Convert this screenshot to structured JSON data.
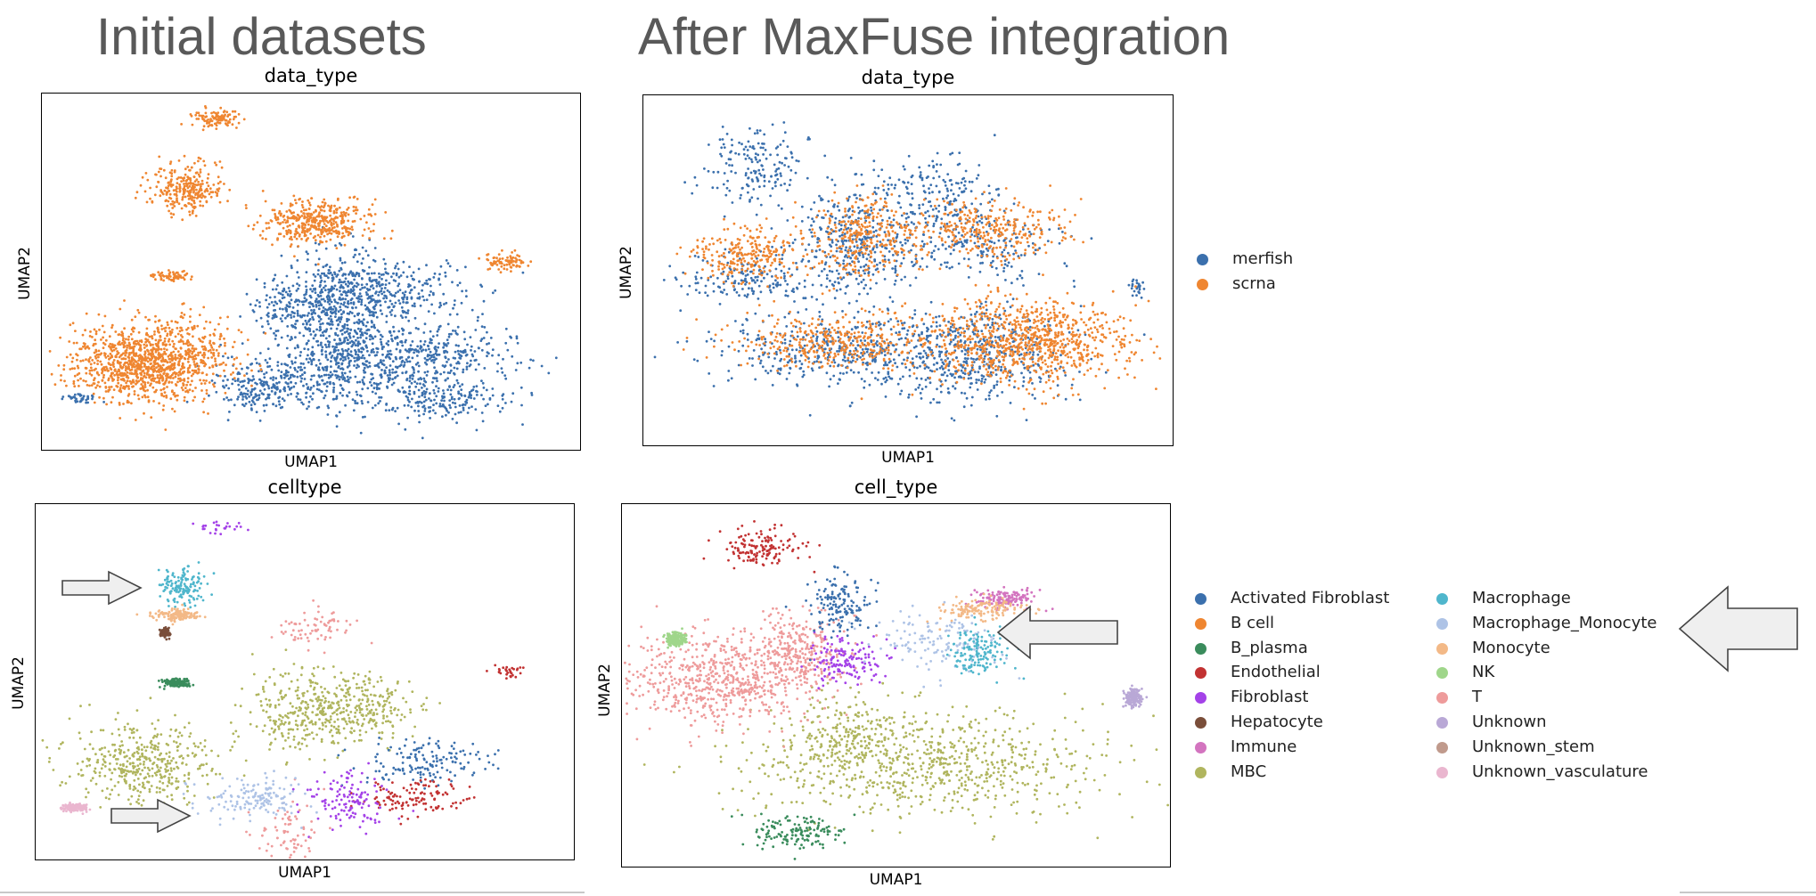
{
  "headings": {
    "left": "Initial datasets",
    "right": "After MaxFuse integration"
  },
  "axes": {
    "x": "UMAP1",
    "y": "UMAP2"
  },
  "panels": {
    "top_left": {
      "title": "data_type"
    },
    "top_right": {
      "title": "data_type"
    },
    "bottom_left": {
      "title": "celltype"
    },
    "bottom_right": {
      "title": "cell_type"
    }
  },
  "legend_data_type": [
    {
      "label": "merfish",
      "color": "#3b70ad"
    },
    {
      "label": "scrna",
      "color": "#ef8631"
    }
  ],
  "legend_cell_type": [
    {
      "label": "Activated Fibroblast",
      "color": "#3b70ad"
    },
    {
      "label": "B cell",
      "color": "#ef8631"
    },
    {
      "label": "B_plasma",
      "color": "#3a8c5c"
    },
    {
      "label": "Endothelial",
      "color": "#c23232"
    },
    {
      "label": "Fibroblast",
      "color": "#a442e8"
    },
    {
      "label": "Hepatocyte",
      "color": "#7a4e3a"
    },
    {
      "label": "Immune",
      "color": "#d374bf"
    },
    {
      "label": "MBC",
      "color": "#b0b55e"
    },
    {
      "label": "Macrophage",
      "color": "#4fb6cc"
    },
    {
      "label": "Macrophage_Monocyte",
      "color": "#aec3e6"
    },
    {
      "label": "Monocyte",
      "color": "#f3b987"
    },
    {
      "label": "NK",
      "color": "#9fd68a"
    },
    {
      "label": "T",
      "color": "#ee9b9b"
    },
    {
      "label": "Unknown",
      "color": "#b9a8d6"
    },
    {
      "label": "Unknown_stem",
      "color": "#c09a8c"
    },
    {
      "label": "Unknown_vasculature",
      "color": "#eab6cf"
    }
  ],
  "chart_data": [
    {
      "type": "scatter",
      "title": "data_type",
      "xlabel": "UMAP1",
      "ylabel": "UMAP2",
      "panel": "Initial datasets",
      "color_by": "data_type",
      "grid": false,
      "legend": "right of top-right panel",
      "series": [
        {
          "name": "merfish",
          "color": "#3b70ad",
          "clusters": [
            {
              "cx": 0.55,
              "cy": 0.38,
              "sx": 0.055,
              "sy": 0.09,
              "weight": 0.3
            },
            {
              "cx": 0.57,
              "cy": 0.22,
              "sx": 0.08,
              "sy": 0.05,
              "weight": 0.17
            },
            {
              "cx": 0.72,
              "cy": 0.28,
              "sx": 0.09,
              "sy": 0.04,
              "weight": 0.14
            },
            {
              "cx": 0.41,
              "cy": 0.18,
              "sx": 0.045,
              "sy": 0.035,
              "weight": 0.09
            },
            {
              "cx": 0.64,
              "cy": 0.45,
              "sx": 0.08,
              "sy": 0.035,
              "weight": 0.13
            },
            {
              "cx": 0.74,
              "cy": 0.15,
              "sx": 0.06,
              "sy": 0.035,
              "weight": 0.1
            },
            {
              "cx": 0.45,
              "cy": 0.41,
              "sx": 0.035,
              "sy": 0.035,
              "weight": 0.05
            },
            {
              "cx": 0.07,
              "cy": 0.15,
              "sx": 0.015,
              "sy": 0.006,
              "weight": 0.02
            }
          ]
        },
        {
          "name": "scrna",
          "color": "#ef8631",
          "clusters": [
            {
              "cx": 0.2,
              "cy": 0.25,
              "sx": 0.07,
              "sy": 0.055,
              "weight": 0.55
            },
            {
              "cx": 0.51,
              "cy": 0.64,
              "sx": 0.05,
              "sy": 0.03,
              "weight": 0.2
            },
            {
              "cx": 0.27,
              "cy": 0.73,
              "sx": 0.035,
              "sy": 0.035,
              "weight": 0.13
            },
            {
              "cx": 0.32,
              "cy": 0.93,
              "sx": 0.022,
              "sy": 0.012,
              "weight": 0.05
            },
            {
              "cx": 0.86,
              "cy": 0.53,
              "sx": 0.02,
              "sy": 0.012,
              "weight": 0.04
            },
            {
              "cx": 0.24,
              "cy": 0.49,
              "sx": 0.015,
              "sy": 0.007,
              "weight": 0.03
            }
          ]
        }
      ]
    },
    {
      "type": "scatter",
      "title": "data_type",
      "xlabel": "UMAP1",
      "ylabel": "UMAP2",
      "panel": "After MaxFuse integration",
      "color_by": "data_type",
      "grid": false,
      "legend": "right",
      "series": [
        {
          "name": "merfish",
          "color": "#3b70ad",
          "clusters": [
            {
              "cx": 0.4,
              "cy": 0.58,
              "sx": 0.06,
              "sy": 0.08,
              "weight": 0.18
            },
            {
              "cx": 0.62,
              "cy": 0.27,
              "sx": 0.09,
              "sy": 0.07,
              "weight": 0.25
            },
            {
              "cx": 0.35,
              "cy": 0.27,
              "sx": 0.11,
              "sy": 0.05,
              "weight": 0.18
            },
            {
              "cx": 0.2,
              "cy": 0.48,
              "sx": 0.06,
              "sy": 0.04,
              "weight": 0.08
            },
            {
              "cx": 0.21,
              "cy": 0.8,
              "sx": 0.05,
              "sy": 0.05,
              "weight": 0.08
            },
            {
              "cx": 0.63,
              "cy": 0.58,
              "sx": 0.08,
              "sy": 0.05,
              "weight": 0.1
            },
            {
              "cx": 0.55,
              "cy": 0.72,
              "sx": 0.06,
              "sy": 0.06,
              "weight": 0.08
            },
            {
              "cx": 0.93,
              "cy": 0.45,
              "sx": 0.008,
              "sy": 0.015,
              "weight": 0.01
            }
          ]
        },
        {
          "name": "scrna",
          "color": "#ef8631",
          "clusters": [
            {
              "cx": 0.72,
              "cy": 0.3,
              "sx": 0.1,
              "sy": 0.06,
              "weight": 0.42
            },
            {
              "cx": 0.35,
              "cy": 0.3,
              "sx": 0.09,
              "sy": 0.04,
              "weight": 0.17
            },
            {
              "cx": 0.2,
              "cy": 0.55,
              "sx": 0.05,
              "sy": 0.04,
              "weight": 0.12
            },
            {
              "cx": 0.65,
              "cy": 0.62,
              "sx": 0.07,
              "sy": 0.04,
              "weight": 0.14
            },
            {
              "cx": 0.42,
              "cy": 0.6,
              "sx": 0.05,
              "sy": 0.06,
              "weight": 0.15
            }
          ]
        }
      ]
    },
    {
      "type": "scatter",
      "title": "celltype",
      "xlabel": "UMAP1",
      "ylabel": "UMAP2",
      "panel": "Initial datasets",
      "color_by": "celltype",
      "grid": false,
      "legend": "right of bottom-right panel",
      "series": [
        {
          "name": "MBC",
          "color": "#b0b55e",
          "clusters": [
            {
              "cx": 0.2,
              "cy": 0.27,
              "sx": 0.07,
              "sy": 0.055,
              "weight": 0.45
            },
            {
              "cx": 0.5,
              "cy": 0.42,
              "sx": 0.055,
              "sy": 0.06,
              "weight": 0.35
            },
            {
              "cx": 0.62,
              "cy": 0.43,
              "sx": 0.05,
              "sy": 0.04,
              "weight": 0.2
            }
          ]
        },
        {
          "name": "Activated Fibroblast",
          "color": "#3b70ad",
          "clusters": [
            {
              "cx": 0.72,
              "cy": 0.28,
              "sx": 0.06,
              "sy": 0.03,
              "weight": 1
            }
          ]
        },
        {
          "name": "Endothelial",
          "color": "#c23232",
          "clusters": [
            {
              "cx": 0.7,
              "cy": 0.18,
              "sx": 0.05,
              "sy": 0.025,
              "weight": 0.8
            },
            {
              "cx": 0.87,
              "cy": 0.53,
              "sx": 0.015,
              "sy": 0.01,
              "weight": 0.2
            }
          ]
        },
        {
          "name": "Fibroblast",
          "color": "#a442e8",
          "clusters": [
            {
              "cx": 0.58,
              "cy": 0.17,
              "sx": 0.04,
              "sy": 0.04,
              "weight": 0.85
            },
            {
              "cx": 0.34,
              "cy": 0.93,
              "sx": 0.022,
              "sy": 0.01,
              "weight": 0.15
            }
          ]
        },
        {
          "name": "T",
          "color": "#ee9b9b",
          "clusters": [
            {
              "cx": 0.47,
              "cy": 0.1,
              "sx": 0.03,
              "sy": 0.05,
              "weight": 0.5
            },
            {
              "cx": 0.51,
              "cy": 0.65,
              "sx": 0.045,
              "sy": 0.03,
              "weight": 0.5
            }
          ]
        },
        {
          "name": "Macrophage_Monocyte",
          "color": "#aec3e6",
          "clusters": [
            {
              "cx": 0.4,
              "cy": 0.18,
              "sx": 0.05,
              "sy": 0.03,
              "weight": 1
            }
          ]
        },
        {
          "name": "Macrophage",
          "color": "#4fb6cc",
          "clusters": [
            {
              "cx": 0.27,
              "cy": 0.77,
              "sx": 0.02,
              "sy": 0.025,
              "weight": 1
            }
          ]
        },
        {
          "name": "Monocyte",
          "color": "#f3b987",
          "clusters": [
            {
              "cx": 0.26,
              "cy": 0.69,
              "sx": 0.02,
              "sy": 0.008,
              "weight": 1
            }
          ]
        },
        {
          "name": "B_plasma",
          "color": "#3a8c5c",
          "clusters": [
            {
              "cx": 0.26,
              "cy": 0.5,
              "sx": 0.012,
              "sy": 0.006,
              "weight": 1
            }
          ]
        },
        {
          "name": "Hepatocyte",
          "color": "#7a4e3a",
          "clusters": [
            {
              "cx": 0.24,
              "cy": 0.64,
              "sx": 0.004,
              "sy": 0.005,
              "weight": 1
            }
          ]
        },
        {
          "name": "Unknown_vasculature",
          "color": "#eab6cf",
          "clusters": [
            {
              "cx": 0.07,
              "cy": 0.15,
              "sx": 0.012,
              "sy": 0.005,
              "weight": 1
            }
          ]
        }
      ],
      "annotations": [
        "arrow pointing at Macrophage cluster",
        "arrow pointing at Macrophage_Monocyte cluster"
      ]
    },
    {
      "type": "scatter",
      "title": "cell_type",
      "xlabel": "UMAP1",
      "ylabel": "UMAP2",
      "panel": "After MaxFuse integration",
      "color_by": "cell_type",
      "grid": false,
      "legend": "right",
      "series": [
        {
          "name": "MBC",
          "color": "#b0b55e",
          "clusters": [
            {
              "cx": 0.55,
              "cy": 0.28,
              "sx": 0.16,
              "sy": 0.07,
              "weight": 0.8
            },
            {
              "cx": 0.42,
              "cy": 0.38,
              "sx": 0.06,
              "sy": 0.05,
              "weight": 0.2
            }
          ]
        },
        {
          "name": "T",
          "color": "#ee9b9b",
          "clusters": [
            {
              "cx": 0.18,
              "cy": 0.52,
              "sx": 0.08,
              "sy": 0.06,
              "weight": 0.7
            },
            {
              "cx": 0.32,
              "cy": 0.6,
              "sx": 0.04,
              "sy": 0.05,
              "weight": 0.3
            }
          ]
        },
        {
          "name": "Fibroblast",
          "color": "#a442e8",
          "clusters": [
            {
              "cx": 0.41,
              "cy": 0.57,
              "sx": 0.04,
              "sy": 0.035,
              "weight": 1
            }
          ]
        },
        {
          "name": "Activated Fibroblast",
          "color": "#3b70ad",
          "clusters": [
            {
              "cx": 0.39,
              "cy": 0.72,
              "sx": 0.03,
              "sy": 0.05,
              "weight": 1
            }
          ]
        },
        {
          "name": "Macrophage_Monocyte",
          "color": "#aec3e6",
          "clusters": [
            {
              "cx": 0.57,
              "cy": 0.62,
              "sx": 0.06,
              "sy": 0.04,
              "weight": 1
            }
          ]
        },
        {
          "name": "Macrophage",
          "color": "#4fb6cc",
          "clusters": [
            {
              "cx": 0.65,
              "cy": 0.6,
              "sx": 0.03,
              "sy": 0.035,
              "weight": 1
            }
          ]
        },
        {
          "name": "Immune",
          "color": "#d374bf",
          "clusters": [
            {
              "cx": 0.7,
              "cy": 0.74,
              "sx": 0.03,
              "sy": 0.015,
              "weight": 1
            }
          ]
        },
        {
          "name": "Endothelial",
          "color": "#c23232",
          "clusters": [
            {
              "cx": 0.25,
              "cy": 0.88,
              "sx": 0.035,
              "sy": 0.025,
              "weight": 1
            }
          ]
        },
        {
          "name": "B_plasma",
          "color": "#3a8c5c",
          "clusters": [
            {
              "cx": 0.32,
              "cy": 0.1,
              "sx": 0.04,
              "sy": 0.02,
              "weight": 1
            }
          ]
        },
        {
          "name": "Monocyte",
          "color": "#f3b987",
          "clusters": [
            {
              "cx": 0.66,
              "cy": 0.71,
              "sx": 0.04,
              "sy": 0.015,
              "weight": 1
            }
          ]
        },
        {
          "name": "NK",
          "color": "#9fd68a",
          "clusters": [
            {
              "cx": 0.1,
              "cy": 0.63,
              "sx": 0.01,
              "sy": 0.01,
              "weight": 1
            }
          ]
        },
        {
          "name": "Unknown",
          "color": "#b9a8d6",
          "clusters": [
            {
              "cx": 0.93,
              "cy": 0.47,
              "sx": 0.008,
              "sy": 0.012,
              "weight": 1
            }
          ]
        }
      ],
      "annotations": [
        "arrow pointing at Macrophage_Monocyte / Macrophage cluster"
      ]
    }
  ]
}
